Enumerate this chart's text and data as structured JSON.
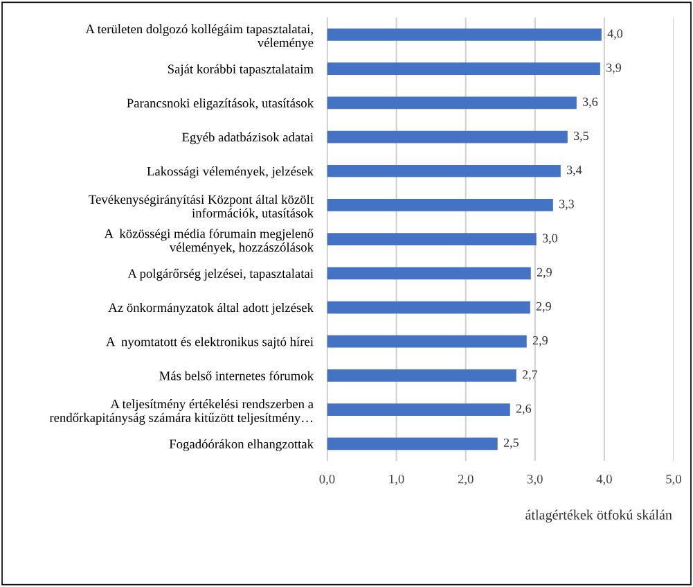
{
  "chart_data": {
    "type": "bar",
    "orientation": "horizontal",
    "xlabel": "átlagértékek ötfokú skálán",
    "categories": [
      "A területen dolgozó kollégáim tapasztalatai,\nvéleménye",
      "Saját korábbi tapasztalataim",
      "Parancsnoki eligazítások, utasítások",
      "Egyéb adatbázisok adatai",
      "Lakossági vélemények, jelzések",
      "Tevékenységirányítási Központ által közölt\ninformációk, utasítások",
      "A  közösségi média fórumain megjelenő\nvélemények, hozzászólások",
      "A polgárőrség jelzései, tapasztalatai",
      "Az önkormányzatok által adott jelzések",
      "A  nyomtatott és elektronikus sajtó hírei",
      "Más belső internetes fórumok",
      "A teljesítmény értékelési rendszerben a\nrendőrkapitányság számára kitűzött teljesítmény…",
      "Fogadóórákon elhangzottak"
    ],
    "values": [
      3.96,
      3.94,
      3.6,
      3.47,
      3.37,
      3.26,
      3.02,
      2.94,
      2.93,
      2.88,
      2.73,
      2.64,
      2.46
    ],
    "value_labels": [
      "4,0",
      "3,9",
      "3,6",
      "3,5",
      "3,4",
      "3,3",
      "3,0",
      "2,9",
      "2,9",
      "2,9",
      "2,7",
      "2,6",
      "2,5"
    ],
    "color": "#4472c4",
    "xlim": [
      0,
      5
    ],
    "xticks": [
      {
        "value": 0,
        "label": "0,0"
      },
      {
        "value": 1,
        "label": "1,0"
      },
      {
        "value": 2,
        "label": "2,0"
      },
      {
        "value": 3,
        "label": "3,0"
      },
      {
        "value": 4,
        "label": "4,0"
      },
      {
        "value": 5,
        "label": "5,0"
      }
    ],
    "grid": "x",
    "legend": false
  }
}
